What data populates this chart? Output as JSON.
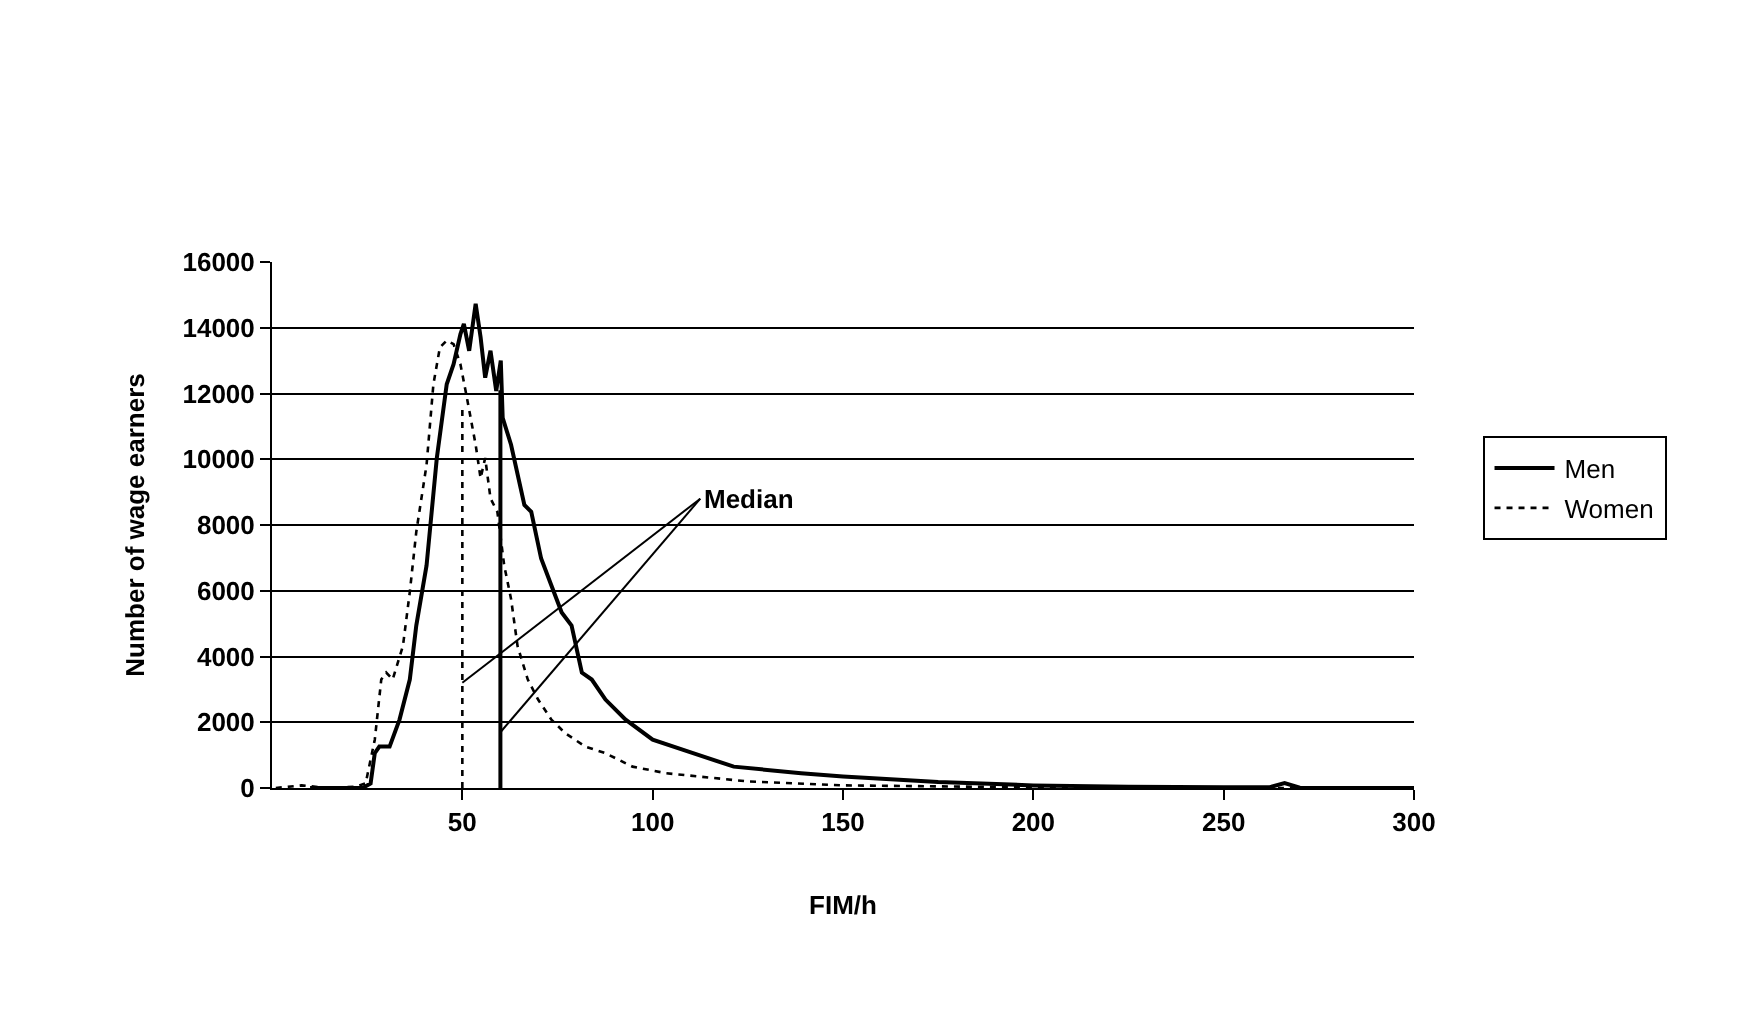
{
  "chart_data": {
    "type": "line",
    "xlabel": "FIM/h",
    "ylabel": "Number of wage earners",
    "xlim": [
      0,
      300
    ],
    "xticks": [
      50,
      100,
      150,
      200,
      250,
      300
    ],
    "ylim": [
      0,
      16000
    ],
    "yticks": [
      0,
      2000,
      4000,
      6000,
      8000,
      10000,
      12000,
      14000,
      16000
    ],
    "grid": "y",
    "legend": "right",
    "marker": "none",
    "annotations": [
      {
        "text": "Median",
        "x": 50,
        "y": 3200
      }
    ],
    "series": [
      {
        "name": "Men",
        "color": "#000000",
        "line_style": "solid",
        "x": [
          10,
          23.8,
          25.9,
          27,
          28.2,
          30.9,
          33.5,
          36.2,
          37.9,
          40.6,
          43.3,
          45.9,
          47.7,
          49.5,
          50.4,
          51.8,
          53.5,
          54.8,
          56,
          57.4,
          58.9,
          60.1,
          60.6,
          62.8,
          66.3,
          68.1,
          70.7,
          73.4,
          76.1,
          78.7,
          81.4,
          84,
          87.6,
          92.9,
          100,
          110.6,
          121.3,
          139,
          150,
          175,
          200,
          225,
          250,
          262,
          266,
          270,
          300
        ],
        "values": [
          0,
          0,
          140,
          1060,
          1260,
          1260,
          2080,
          3300,
          4940,
          6770,
          10040,
          12280,
          12890,
          13810,
          14120,
          13300,
          14730,
          13710,
          12480,
          13300,
          12080,
          13000,
          11260,
          10440,
          8610,
          8400,
          6980,
          6160,
          5340,
          4940,
          3510,
          3300,
          2690,
          2080,
          1470,
          1060,
          650,
          450,
          350,
          180,
          80,
          40,
          20,
          20,
          150,
          10,
          0
        ]
      },
      {
        "name": "Women",
        "color": "#000000",
        "line_style": "dotted",
        "x": [
          1,
          7.8,
          14.9,
          22,
          24.6,
          27,
          28.7,
          30,
          31.7,
          34.4,
          36.2,
          37.9,
          40.6,
          42.4,
          44.1,
          45.9,
          47.7,
          49.5,
          51.2,
          53.5,
          54.8,
          56,
          57.4,
          59.2,
          61,
          62.8,
          64.5,
          67.2,
          69.9,
          73.4,
          77,
          82.3,
          87.6,
          94.7,
          103.5,
          125,
          150,
          200,
          250,
          300
        ],
        "values": [
          0,
          80,
          0,
          40,
          140,
          1470,
          3300,
          3510,
          3300,
          4320,
          5960,
          7790,
          9830,
          12280,
          13400,
          13610,
          13500,
          12890,
          11870,
          10440,
          9420,
          10040,
          8810,
          8400,
          6770,
          5750,
          4320,
          3300,
          2690,
          2080,
          1670,
          1260,
          1060,
          650,
          450,
          200,
          80,
          20,
          0,
          0
        ]
      },
      {
        "color": "#000000",
        "line_style": "dotted",
        "x": [
          50,
          50
        ],
        "values": [
          0,
          11500
        ]
      },
      {
        "color": "#000000",
        "line_style": "solid",
        "x": [
          60,
          60
        ],
        "values": [
          0,
          12100
        ]
      }
    ]
  }
}
